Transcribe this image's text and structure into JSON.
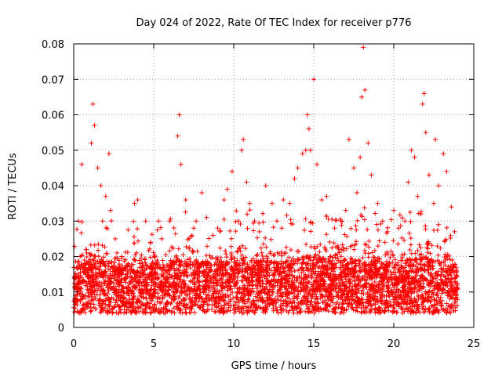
{
  "chart_data": {
    "type": "scatter",
    "title": "Day 024 of 2022, Rate Of TEC Index for receiver p776",
    "xlabel": "GPS time / hours",
    "ylabel": "ROTI / TECUs",
    "xlim": [
      0,
      25
    ],
    "ylim": [
      0,
      0.08
    ],
    "xticks": [
      0,
      5,
      10,
      15,
      20,
      25
    ],
    "yticks": [
      0,
      0.01,
      0.02,
      0.03,
      0.04,
      0.05,
      0.06,
      0.07,
      0.08
    ],
    "xtick_labels": [
      "0",
      "5",
      "10",
      "15",
      "20",
      "25"
    ],
    "ytick_labels": [
      "0",
      "0.01",
      "0.02",
      "0.03",
      "0.04",
      "0.05",
      "0.06",
      "0.07",
      "0.08"
    ],
    "grid": true,
    "marker": "plus",
    "color": "#ff0000",
    "series": [
      {
        "x": [
          0.2,
          0.3,
          0.5,
          0.8,
          1.1,
          1.2,
          1.3,
          1.5,
          1.7,
          1.8,
          2.0,
          2.2,
          2.3,
          2.6,
          3.0,
          3.4,
          3.8,
          4.0,
          4.5,
          4.8,
          5.3,
          5.5,
          6.0,
          6.5,
          6.6,
          6.7,
          7.0,
          7.5,
          8.0,
          8.3,
          8.7,
          9.0,
          9.4,
          9.6,
          9.9,
          10.3,
          10.5,
          10.6,
          10.8,
          11.0,
          11.3,
          11.6,
          12.0,
          12.4,
          12.7,
          13.1,
          13.5,
          13.8,
          14.0,
          14.3,
          14.5,
          14.6,
          14.7,
          14.8,
          15.0,
          15.2,
          15.5,
          15.8,
          16.3,
          16.7,
          17.0,
          17.2,
          17.5,
          17.7,
          17.9,
          18.0,
          18.1,
          18.2,
          18.4,
          18.6,
          19.0,
          19.3,
          19.6,
          20.0,
          20.3,
          20.7,
          20.9,
          21.1,
          21.3,
          21.5,
          21.7,
          21.8,
          21.9,
          22.0,
          22.2,
          22.5,
          22.6,
          22.8,
          23.1,
          23.3,
          23.6,
          23.8,
          0.4,
          2.8,
          5.0,
          7.8,
          10.1,
          12.2,
          13.3,
          15.6,
          16.9,
          19.8,
          22.9,
          23.9
        ],
        "y": [
          0.012,
          0.03,
          0.046,
          0.022,
          0.052,
          0.063,
          0.057,
          0.045,
          0.04,
          0.03,
          0.037,
          0.049,
          0.033,
          0.025,
          0.02,
          0.018,
          0.035,
          0.036,
          0.03,
          0.024,
          0.03,
          0.025,
          0.03,
          0.054,
          0.06,
          0.046,
          0.036,
          0.028,
          0.038,
          0.031,
          0.026,
          0.028,
          0.036,
          0.039,
          0.044,
          0.03,
          0.05,
          0.053,
          0.041,
          0.035,
          0.03,
          0.027,
          0.04,
          0.035,
          0.03,
          0.036,
          0.035,
          0.042,
          0.045,
          0.049,
          0.05,
          0.06,
          0.056,
          0.05,
          0.07,
          0.046,
          0.036,
          0.037,
          0.028,
          0.03,
          0.033,
          0.053,
          0.045,
          0.038,
          0.048,
          0.065,
          0.079,
          0.067,
          0.052,
          0.043,
          0.035,
          0.03,
          0.027,
          0.033,
          0.028,
          0.03,
          0.041,
          0.05,
          0.048,
          0.037,
          0.032,
          0.063,
          0.066,
          0.055,
          0.043,
          0.035,
          0.053,
          0.04,
          0.049,
          0.044,
          0.034,
          0.027,
          0.02,
          0.01,
          0.009,
          0.011,
          0.012,
          0.01,
          0.011,
          0.013,
          0.012,
          0.01,
          0.011,
          0.009
        ]
      }
    ]
  }
}
